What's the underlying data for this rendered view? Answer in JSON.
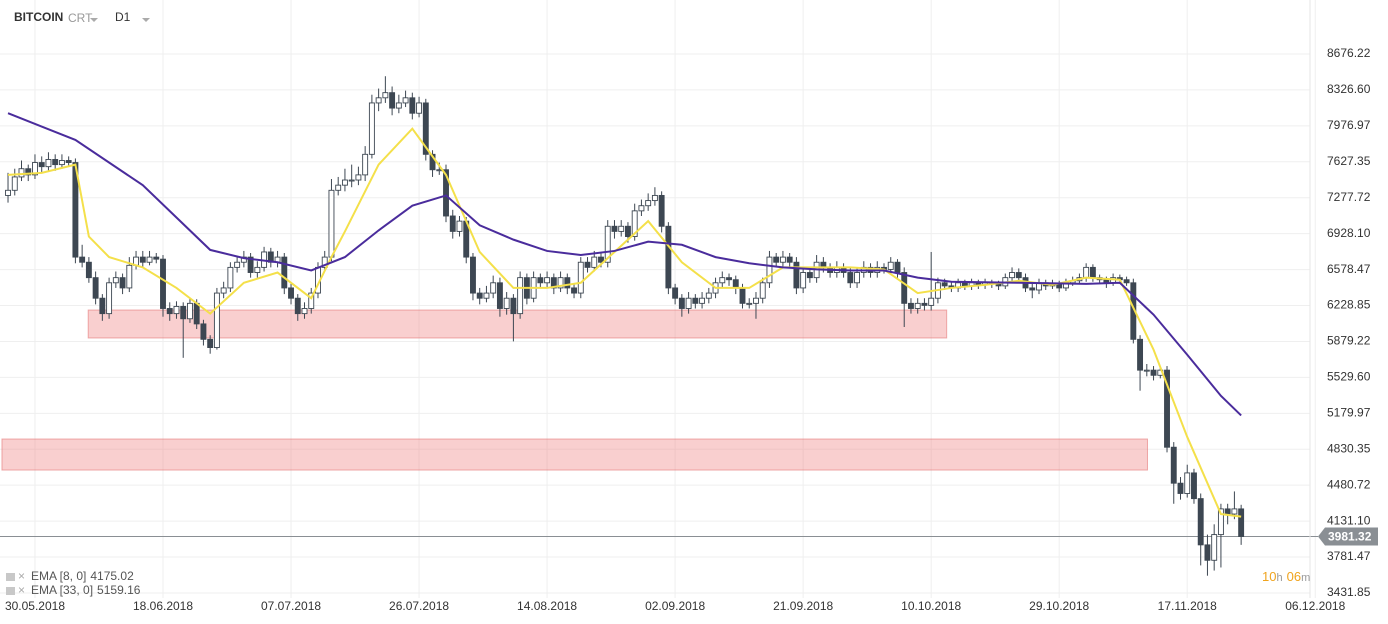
{
  "toolbar": {
    "symbol": "BITCOIN",
    "chart_type": "CRT",
    "timeframe": "D1"
  },
  "chart_data": {
    "type": "candlestick",
    "bull_color": "#ffffff",
    "bear_color": "#3d4752",
    "line_color": "#3d4752",
    "grid": true,
    "xlim": [
      -1.19,
      195
    ],
    "ylim": [
      3383,
      9153
    ],
    "xticks": [
      {
        "value": 4,
        "label": "30.05.2018"
      },
      {
        "value": 23,
        "label": "18.06.2018"
      },
      {
        "value": 42,
        "label": "07.07.2018"
      },
      {
        "value": 61,
        "label": "26.07.2018"
      },
      {
        "value": 80,
        "label": "14.08.2018"
      },
      {
        "value": 99,
        "label": "02.09.2018"
      },
      {
        "value": 118,
        "label": "21.09.2018"
      },
      {
        "value": 137,
        "label": "10.10.2018"
      },
      {
        "value": 156,
        "label": "29.10.2018"
      },
      {
        "value": 175,
        "label": "17.11.2018"
      },
      {
        "value": 194,
        "label": "06.12.2018"
      }
    ],
    "yticks": [
      8676.22,
      {
        "value": 8326.6,
        "label": "8326.60"
      },
      7976.97,
      7627.35,
      7277.72,
      {
        "value": 6928.1,
        "label": "6928.10"
      },
      6578.47,
      6228.85,
      5879.22,
      {
        "value": 5529.6,
        "label": "5529.60"
      },
      5179.97,
      4830.35,
      4480.72,
      {
        "value": 4131.1,
        "label": "4131.10"
      },
      3781.47,
      3431.85
    ],
    "zones": [
      {
        "x": [
          11.9,
          139.3
        ],
        "y": [
          5913,
          6185
        ]
      },
      {
        "x": [
          -0.9,
          169.1
        ],
        "y": [
          4628,
          4930
        ]
      }
    ],
    "candles": [
      [
        7300,
        7520,
        7230,
        7350
      ],
      [
        7350,
        7560,
        7300,
        7480
      ],
      [
        7480,
        7640,
        7440,
        7560
      ],
      [
        7560,
        7600,
        7440,
        7500
      ],
      [
        7500,
        7700,
        7460,
        7620
      ],
      [
        7620,
        7680,
        7520,
        7580
      ],
      [
        7580,
        7720,
        7540,
        7650
      ],
      [
        7650,
        7700,
        7540,
        7600
      ],
      [
        7600,
        7700,
        7560,
        7640
      ],
      [
        7640,
        7680,
        7580,
        7620
      ],
      [
        7620,
        7660,
        6640,
        6700
      ],
      [
        6700,
        6820,
        6600,
        6650
      ],
      [
        6650,
        6700,
        6450,
        6500
      ],
      [
        6500,
        6560,
        6240,
        6300
      ],
      [
        6300,
        6340,
        6080,
        6150
      ],
      [
        6150,
        6500,
        6100,
        6450
      ],
      [
        6450,
        6560,
        6400,
        6500
      ],
      [
        6500,
        6540,
        6340,
        6400
      ],
      [
        6400,
        6700,
        6360,
        6620
      ],
      [
        6620,
        6760,
        6580,
        6700
      ],
      [
        6700,
        6760,
        6600,
        6650
      ],
      [
        6650,
        6760,
        6620,
        6700
      ],
      [
        6700,
        6740,
        6640,
        6680
      ],
      [
        6680,
        6720,
        6120,
        6200
      ],
      [
        6200,
        6260,
        6080,
        6150
      ],
      [
        6150,
        6270,
        6100,
        6220
      ],
      [
        6220,
        6260,
        5720,
        6100
      ],
      [
        6100,
        6300,
        6060,
        6250
      ],
      [
        6250,
        6290,
        6000,
        6050
      ],
      [
        6050,
        6090,
        5840,
        5900
      ],
      [
        5900,
        5940,
        5760,
        5820
      ],
      [
        5820,
        6400,
        5800,
        6350
      ],
      [
        6350,
        6460,
        6300,
        6400
      ],
      [
        6400,
        6650,
        6360,
        6600
      ],
      [
        6600,
        6700,
        6550,
        6650
      ],
      [
        6650,
        6760,
        6600,
        6700
      ],
      [
        6700,
        6740,
        6500,
        6550
      ],
      [
        6550,
        6660,
        6500,
        6600
      ],
      [
        6600,
        6800,
        6560,
        6750
      ],
      [
        6750,
        6790,
        6600,
        6650
      ],
      [
        6650,
        6760,
        6600,
        6700
      ],
      [
        6700,
        6740,
        6340,
        6400
      ],
      [
        6400,
        6440,
        6240,
        6300
      ],
      [
        6300,
        6340,
        6080,
        6150
      ],
      [
        6150,
        6260,
        6100,
        6200
      ],
      [
        6200,
        6400,
        6150,
        6350
      ],
      [
        6350,
        6650,
        6300,
        6600
      ],
      [
        6600,
        6760,
        6560,
        6700
      ],
      [
        6700,
        7460,
        6660,
        7350
      ],
      [
        7350,
        7480,
        7300,
        7400
      ],
      [
        7400,
        7560,
        7340,
        7450
      ],
      [
        7450,
        7600,
        7380,
        7450
      ],
      [
        7450,
        7580,
        7400,
        7500
      ],
      [
        7500,
        7780,
        7440,
        7700
      ],
      [
        7700,
        8280,
        7660,
        8200
      ],
      [
        8200,
        8340,
        8120,
        8250
      ],
      [
        8250,
        8460,
        8200,
        8300
      ],
      [
        8300,
        8360,
        8080,
        8150
      ],
      [
        8150,
        8280,
        8100,
        8200
      ],
      [
        8200,
        8320,
        8160,
        8250
      ],
      [
        8250,
        8300,
        8040,
        8100
      ],
      [
        8100,
        8260,
        8060,
        8200
      ],
      [
        8200,
        8240,
        7640,
        7700
      ],
      [
        7700,
        7740,
        7480,
        7550
      ],
      [
        7550,
        7620,
        7500,
        7550
      ],
      [
        7550,
        7600,
        7040,
        7100
      ],
      [
        7100,
        7160,
        6880,
        6950
      ],
      [
        6950,
        7100,
        6900,
        7050
      ],
      [
        7050,
        7090,
        6640,
        6700
      ],
      [
        6700,
        6740,
        6280,
        6350
      ],
      [
        6350,
        6400,
        6240,
        6300
      ],
      [
        6300,
        6420,
        6260,
        6350
      ],
      [
        6350,
        6520,
        6300,
        6450
      ],
      [
        6450,
        6500,
        6120,
        6200
      ],
      [
        6200,
        6360,
        6140,
        6300
      ],
      [
        6300,
        6340,
        5880,
        6150
      ],
      [
        6150,
        6560,
        6100,
        6500
      ],
      [
        6500,
        6540,
        6240,
        6300
      ],
      [
        6300,
        6560,
        6260,
        6500
      ],
      [
        6500,
        6540,
        6400,
        6450
      ],
      [
        6450,
        6560,
        6400,
        6500
      ],
      [
        6500,
        6540,
        6340,
        6400
      ],
      [
        6400,
        6560,
        6360,
        6500
      ],
      [
        6500,
        6540,
        6340,
        6400
      ],
      [
        6400,
        6440,
        6300,
        6350
      ],
      [
        6350,
        6700,
        6300,
        6650
      ],
      [
        6650,
        6700,
        6550,
        6600
      ],
      [
        6600,
        6760,
        6560,
        6700
      ],
      [
        6700,
        6740,
        6600,
        6650
      ],
      [
        6650,
        7060,
        6600,
        7000
      ],
      [
        7000,
        7060,
        6880,
        6950
      ],
      [
        6950,
        7060,
        6900,
        7000
      ],
      [
        7000,
        7040,
        6840,
        6900
      ],
      [
        6900,
        7220,
        6860,
        7150
      ],
      [
        7150,
        7260,
        7100,
        7200
      ],
      [
        7200,
        7320,
        7150,
        7250
      ],
      [
        7250,
        7380,
        7200,
        7300
      ],
      [
        7300,
        7340,
        6940,
        7000
      ],
      [
        7000,
        7040,
        6340,
        6400
      ],
      [
        6400,
        6440,
        6240,
        6300
      ],
      [
        6300,
        6340,
        6120,
        6200
      ],
      [
        6200,
        6360,
        6150,
        6300
      ],
      [
        6300,
        6340,
        6200,
        6250
      ],
      [
        6250,
        6360,
        6200,
        6300
      ],
      [
        6300,
        6400,
        6250,
        6350
      ],
      [
        6350,
        6500,
        6300,
        6450
      ],
      [
        6450,
        6560,
        6400,
        6500
      ],
      [
        6500,
        6540,
        6420,
        6480
      ],
      [
        6480,
        6520,
        6340,
        6400
      ],
      [
        6400,
        6440,
        6200,
        6250
      ],
      [
        6250,
        6300,
        6200,
        6250
      ],
      [
        6250,
        6360,
        6100,
        6300
      ],
      [
        6300,
        6500,
        6250,
        6450
      ],
      [
        6450,
        6760,
        6400,
        6700
      ],
      [
        6700,
        6740,
        6600,
        6650
      ],
      [
        6650,
        6760,
        6600,
        6700
      ],
      [
        6700,
        6740,
        6600,
        6650
      ],
      [
        6650,
        6700,
        6340,
        6400
      ],
      [
        6400,
        6600,
        6350,
        6550
      ],
      [
        6550,
        6600,
        6450,
        6500
      ],
      [
        6500,
        6720,
        6450,
        6650
      ],
      [
        6650,
        6700,
        6550,
        6600
      ],
      [
        6600,
        6640,
        6500,
        6550
      ],
      [
        6550,
        6660,
        6500,
        6600
      ],
      [
        6600,
        6640,
        6500,
        6550
      ],
      [
        6550,
        6600,
        6400,
        6450
      ],
      [
        6450,
        6600,
        6400,
        6550
      ],
      [
        6550,
        6660,
        6500,
        6600
      ],
      [
        6600,
        6640,
        6500,
        6550
      ],
      [
        6550,
        6660,
        6500,
        6600
      ],
      [
        6600,
        6640,
        6540,
        6580
      ],
      [
        6580,
        6700,
        6540,
        6650
      ],
      [
        6650,
        6680,
        6500,
        6550
      ],
      [
        6550,
        6600,
        6020,
        6250
      ],
      [
        6250,
        6300,
        6150,
        6200
      ],
      [
        6200,
        6300,
        6150,
        6250
      ],
      [
        6250,
        6300,
        6180,
        6230
      ],
      [
        6230,
        6750,
        6180,
        6300
      ],
      [
        6300,
        6500,
        6250,
        6450
      ],
      [
        6450,
        6490,
        6380,
        6420
      ],
      [
        6420,
        6460,
        6360,
        6400
      ],
      [
        6400,
        6490,
        6360,
        6450
      ],
      [
        6450,
        6480,
        6380,
        6420
      ],
      [
        6420,
        6490,
        6380,
        6450
      ],
      [
        6450,
        6480,
        6390,
        6430
      ],
      [
        6430,
        6490,
        6390,
        6450
      ],
      [
        6450,
        6480,
        6400,
        6440
      ],
      [
        6440,
        6470,
        6380,
        6420
      ],
      [
        6420,
        6540,
        6390,
        6500
      ],
      [
        6500,
        6600,
        6460,
        6550
      ],
      [
        6550,
        6590,
        6460,
        6500
      ],
      [
        6500,
        6540,
        6360,
        6400
      ],
      [
        6400,
        6440,
        6300,
        6380
      ],
      [
        6380,
        6490,
        6340,
        6450
      ],
      [
        6450,
        6480,
        6380,
        6420
      ],
      [
        6420,
        6480,
        6390,
        6440
      ],
      [
        6440,
        6470,
        6360,
        6400
      ],
      [
        6400,
        6490,
        6370,
        6450
      ],
      [
        6450,
        6510,
        6420,
        6470
      ],
      [
        6470,
        6540,
        6440,
        6500
      ],
      [
        6500,
        6640,
        6460,
        6600
      ],
      [
        6600,
        6630,
        6460,
        6500
      ],
      [
        6500,
        6530,
        6440,
        6480
      ],
      [
        6480,
        6510,
        6400,
        6450
      ],
      [
        6450,
        6540,
        6420,
        6500
      ],
      [
        6500,
        6530,
        6440,
        6480
      ],
      [
        6480,
        6510,
        6420,
        6450
      ],
      [
        6450,
        6490,
        5860,
        5900
      ],
      [
        5900,
        5940,
        5400,
        5600
      ],
      [
        5600,
        5660,
        5540,
        5600
      ],
      [
        5600,
        5640,
        5500,
        5550
      ],
      [
        5550,
        5640,
        5520,
        5600
      ],
      [
        5600,
        5640,
        4800,
        4850
      ],
      [
        4850,
        4900,
        4300,
        4500
      ],
      [
        4500,
        4560,
        4340,
        4400
      ],
      [
        4400,
        4680,
        4360,
        4600
      ],
      [
        4600,
        4640,
        4300,
        4350
      ],
      [
        4350,
        4400,
        3700,
        3900
      ],
      [
        3900,
        4000,
        3600,
        3750
      ],
      [
        3750,
        4100,
        3650,
        4000
      ],
      [
        4000,
        4300,
        3680,
        4250
      ],
      [
        4250,
        4300,
        4100,
        4200
      ],
      [
        4200,
        4420,
        4150,
        4250
      ],
      [
        4250,
        4290,
        3900,
        3981.32
      ]
    ],
    "series": [
      {
        "name": "EMA [8, 0]",
        "color": "#f4e04a",
        "x": [
          0,
          5,
          10,
          12,
          15,
          20,
          25,
          30,
          35,
          40,
          45,
          48,
          50,
          55,
          60,
          65,
          70,
          75,
          80,
          85,
          90,
          95,
          100,
          105,
          110,
          115,
          120,
          125,
          130,
          135,
          140,
          145,
          150,
          155,
          160,
          165,
          170,
          175,
          180,
          183
        ],
        "values": [
          7500,
          7520,
          7600,
          6900,
          6700,
          6600,
          6400,
          6150,
          6450,
          6550,
          6300,
          6700,
          6950,
          7600,
          7950,
          7500,
          6750,
          6400,
          6400,
          6450,
          6750,
          7050,
          6650,
          6400,
          6400,
          6600,
          6600,
          6600,
          6580,
          6350,
          6400,
          6430,
          6470,
          6430,
          6500,
          6480,
          5800,
          4950,
          4200,
          4175.02
        ]
      },
      {
        "name": "EMA [33, 0]",
        "color": "#4a2c9c",
        "x": [
          0,
          10,
          20,
          30,
          35,
          40,
          45,
          50,
          55,
          60,
          65,
          70,
          75,
          80,
          85,
          90,
          95,
          100,
          105,
          110,
          115,
          120,
          125,
          130,
          135,
          140,
          150,
          160,
          165,
          170,
          175,
          180,
          183
        ],
        "values": [
          8100,
          7840,
          7400,
          6770,
          6690,
          6650,
          6570,
          6700,
          6960,
          7200,
          7300,
          7010,
          6870,
          6760,
          6720,
          6760,
          6850,
          6820,
          6700,
          6640,
          6600,
          6580,
          6570,
          6570,
          6500,
          6460,
          6450,
          6440,
          6450,
          6140,
          5750,
          5350,
          5159.16
        ]
      }
    ],
    "countdown": {
      "hours": "10",
      "hours_unit": "h",
      "minutes": "06",
      "minutes_unit": "m"
    }
  }
}
